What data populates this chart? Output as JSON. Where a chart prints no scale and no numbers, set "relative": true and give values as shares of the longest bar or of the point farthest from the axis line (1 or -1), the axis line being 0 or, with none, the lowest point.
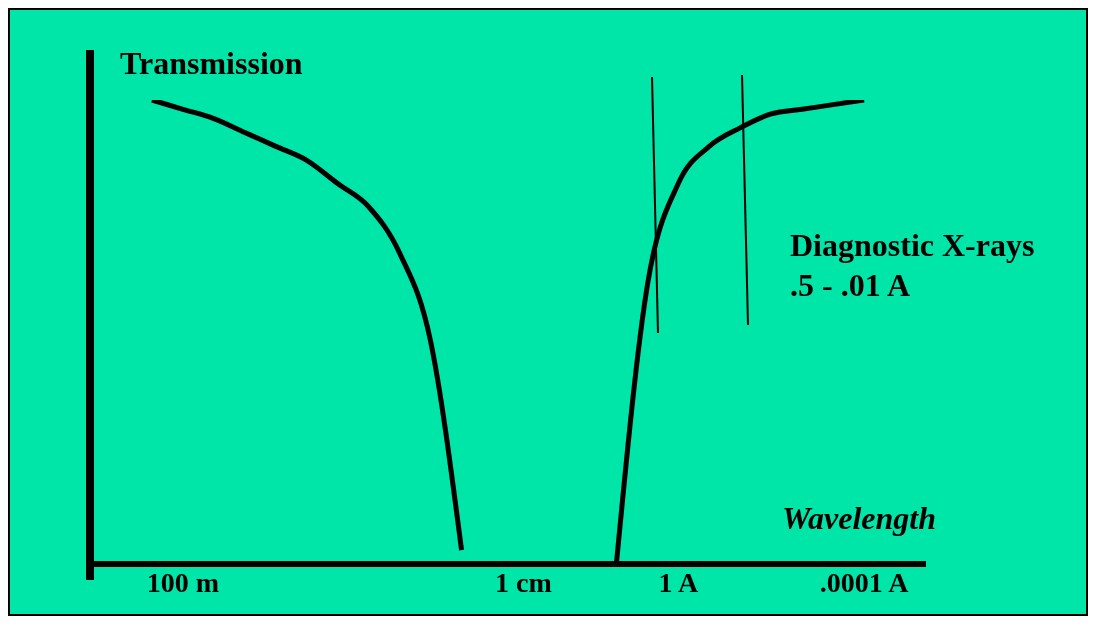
{
  "chart_data": {
    "type": "line",
    "relative": true,
    "ylabel": "Transmission",
    "xlabel": "Wavelength",
    "categories": [
      null,
      null,
      null,
      "100 m",
      null,
      null,
      null,
      null,
      null,
      null,
      null,
      null,
      null,
      null,
      "1 cm",
      null,
      null,
      null,
      null,
      "1 A",
      null,
      null,
      null,
      null,
      null,
      ".0001 A",
      null,
      null
    ],
    "series": [
      {
        "color": "#000000",
        "values": [
          null,
          null,
          1.0,
          0.98,
          0.96,
          0.93,
          0.9,
          0.87,
          0.82,
          0.77,
          0.67,
          0.48,
          0.03,
          null,
          null,
          null,
          null,
          null,
          null,
          null,
          null,
          null,
          null,
          null,
          null,
          null,
          null,
          null
        ]
      },
      {
        "color": "#000000",
        "values": [
          null,
          null,
          null,
          null,
          null,
          null,
          null,
          null,
          null,
          null,
          null,
          null,
          null,
          null,
          null,
          null,
          null,
          0.0,
          0.6,
          0.82,
          0.9,
          0.94,
          0.97,
          0.98,
          0.99,
          1.0,
          null,
          null
        ]
      }
    ],
    "annotations": [
      "Diagnostic X-rays",
      ".5 - .01 A"
    ],
    "marker": "none",
    "line_style": "solid"
  }
}
